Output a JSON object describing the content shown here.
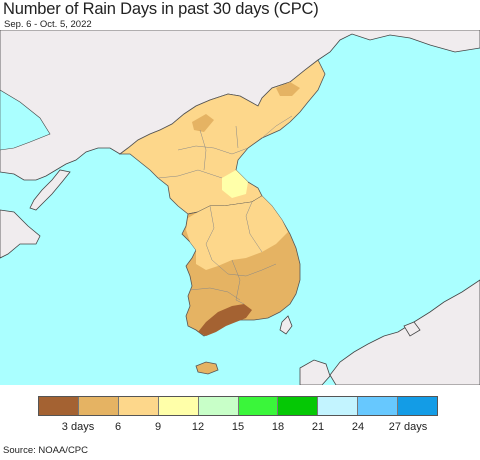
{
  "title": "Number of Rain Days in past 30 days (CPC)",
  "date_range": "Sep. 6 - Oct. 5, 2022",
  "source": "Source: NOAA/CPC",
  "colors": {
    "sea": "#aaffff",
    "foreign_land": "#f0ecee",
    "border": "#444444"
  },
  "legend": {
    "colors": [
      "#a46232",
      "#e5b363",
      "#fdd78b",
      "#ffffa9",
      "#c8ffc8",
      "#3af63a",
      "#05c805",
      "#c3f4ff",
      "#67c8fe",
      "#139ce6"
    ],
    "tick_labels": [
      "3 days",
      "6",
      "9",
      "12",
      "15",
      "18",
      "21",
      "24",
      "27 days"
    ]
  }
}
